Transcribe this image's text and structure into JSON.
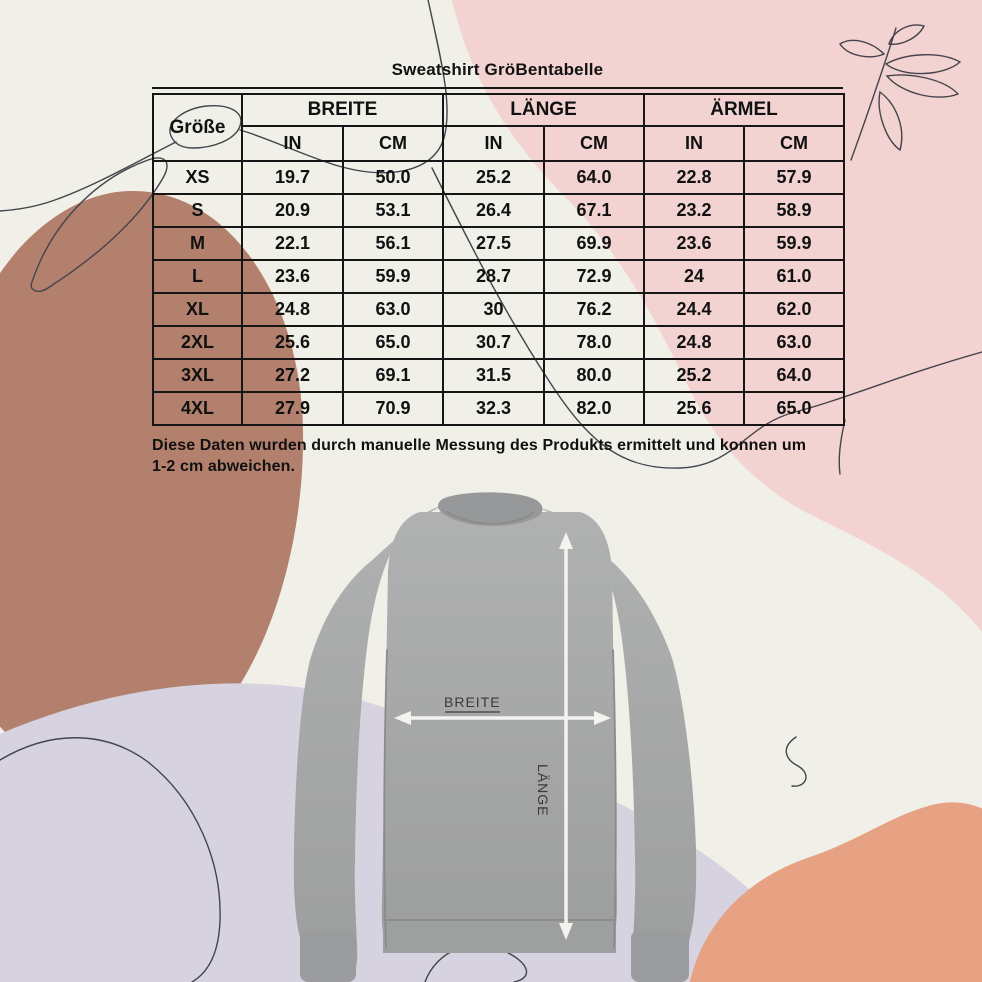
{
  "title": "Sweatshirt GröBentabelle",
  "table": {
    "size_column_header": "Größe",
    "groups": [
      {
        "label": "BREITE"
      },
      {
        "label": "LÄNGE"
      },
      {
        "label": "ÄRMEL"
      }
    ],
    "unit_headers": [
      "IN",
      "CM",
      "IN",
      "CM",
      "IN",
      "CM"
    ],
    "rows": [
      {
        "size": "XS",
        "values": [
          "19.7",
          "50.0",
          "25.2",
          "64.0",
          "22.8",
          "57.9"
        ]
      },
      {
        "size": "S",
        "values": [
          "20.9",
          "53.1",
          "26.4",
          "67.1",
          "23.2",
          "58.9"
        ]
      },
      {
        "size": "M",
        "values": [
          "22.1",
          "56.1",
          "27.5",
          "69.9",
          "23.6",
          "59.9"
        ]
      },
      {
        "size": "L",
        "values": [
          "23.6",
          "59.9",
          "28.7",
          "72.9",
          "24",
          "61.0"
        ]
      },
      {
        "size": "XL",
        "values": [
          "24.8",
          "63.0",
          "30",
          "76.2",
          "24.4",
          "62.0"
        ]
      },
      {
        "size": "2XL",
        "values": [
          "25.6",
          "65.0",
          "30.7",
          "78.0",
          "24.8",
          "63.0"
        ]
      },
      {
        "size": "3XL",
        "values": [
          "27.2",
          "69.1",
          "31.5",
          "80.0",
          "25.2",
          "64.0"
        ]
      },
      {
        "size": "4XL",
        "values": [
          "27.9",
          "70.9",
          "32.3",
          "82.0",
          "25.6",
          "65.0"
        ]
      }
    ]
  },
  "note": {
    "line1": "Diese Daten wurden durch manuelle Messung des Produkts ermittelt und konnen um",
    "line2": "1-2 cm abweichen."
  },
  "diagram": {
    "width_label": "BREITE",
    "length_label": "LÄNGE"
  },
  "icons": {
    "leaf_branch": "leaf-branch-line-art",
    "sweatshirt": "gray-sweatshirt-photo"
  },
  "colors": {
    "background": "#f0efe8",
    "blob-pink": "#f2d3d1",
    "blob-terracotta": "#b3806e",
    "blob-lavender": "#d6d2df",
    "blob-orange": "#e7a284",
    "table-border": "#161616",
    "text": "#111111",
    "line-art": "#45434b",
    "sweatshirt-gray": "#a5a6a6",
    "arrow-white": "#f4f3f0",
    "label-gray": "#3a3a3a"
  }
}
